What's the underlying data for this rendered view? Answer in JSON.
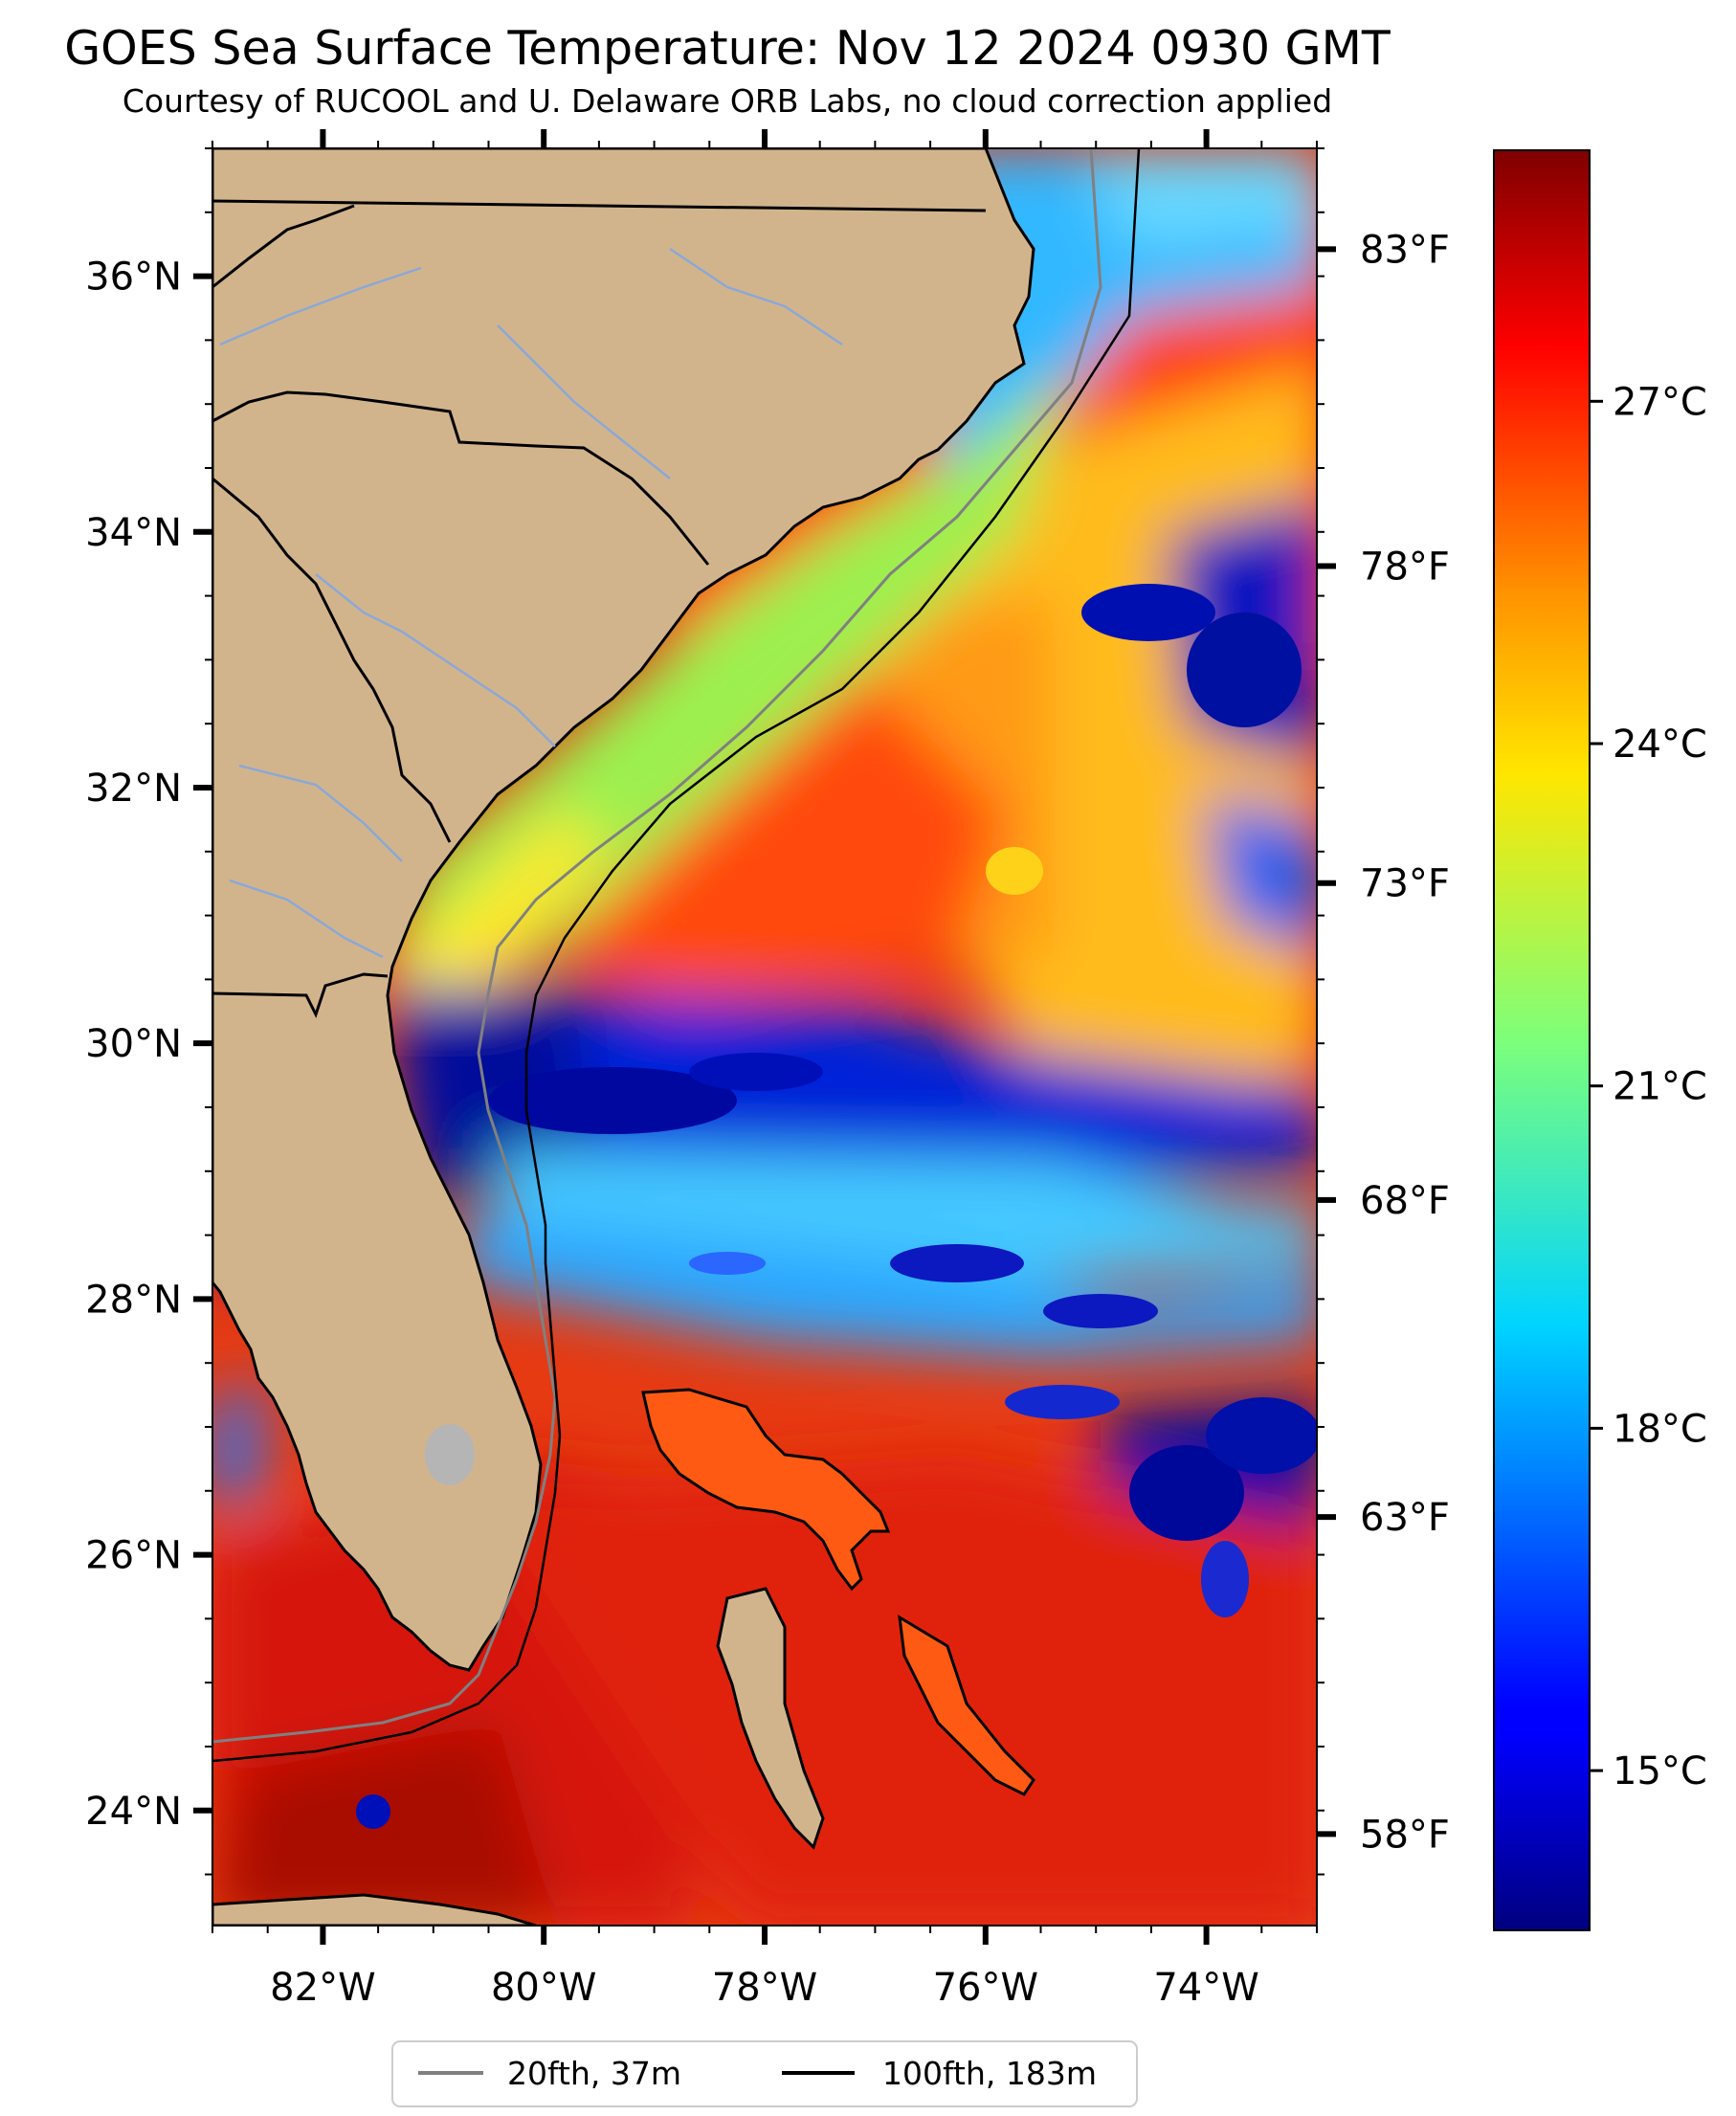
{
  "title": "GOES Sea Surface Temperature: Nov 12 2024 0930 GMT",
  "subtitle": "Courtesy of RUCOOL and U. Delaware ORB Labs, no cloud correction applied",
  "map": {
    "lon_range": [
      -83,
      -73
    ],
    "lat_range": [
      23.1,
      37
    ],
    "lat_ticks": [
      {
        "value": 36,
        "label": "36°N"
      },
      {
        "value": 34,
        "label": "34°N"
      },
      {
        "value": 32,
        "label": "32°N"
      },
      {
        "value": 30,
        "label": "30°N"
      },
      {
        "value": 28,
        "label": "28°N"
      },
      {
        "value": 26,
        "label": "26°N"
      },
      {
        "value": 24,
        "label": "24°N"
      }
    ],
    "lon_ticks": [
      {
        "value": -82,
        "label": "82°W"
      },
      {
        "value": -80,
        "label": "80°W"
      },
      {
        "value": -78,
        "label": "78°W"
      },
      {
        "value": -76,
        "label": "76°W"
      },
      {
        "value": -74,
        "label": "74°W"
      }
    ],
    "land_color": "#d2b48c",
    "river_color": "#8aa8d8",
    "isobath_20_color": "#808080",
    "isobath_100_color": "#000000"
  },
  "fahrenheit_ticks": [
    {
      "value": 83,
      "label": "83°F"
    },
    {
      "value": 78,
      "label": "78°F"
    },
    {
      "value": 73,
      "label": "73°F"
    },
    {
      "value": 68,
      "label": "68°F"
    },
    {
      "value": 63,
      "label": "63°F"
    },
    {
      "value": 58,
      "label": "58°F"
    }
  ],
  "colorbar": {
    "range_c": [
      13.6,
      29.2
    ],
    "colormap": "jet",
    "ticks": [
      {
        "value": 27,
        "label": "27°C"
      },
      {
        "value": 24,
        "label": "24°C"
      },
      {
        "value": 21,
        "label": "21°C"
      },
      {
        "value": 18,
        "label": "18°C"
      },
      {
        "value": 15,
        "label": "15°C"
      }
    ]
  },
  "legend": {
    "placement": "bottom-center",
    "items": [
      {
        "label": "20fth, 37m",
        "color": "#808080"
      },
      {
        "label": "100fth, 183m",
        "color": "#000000"
      }
    ]
  }
}
